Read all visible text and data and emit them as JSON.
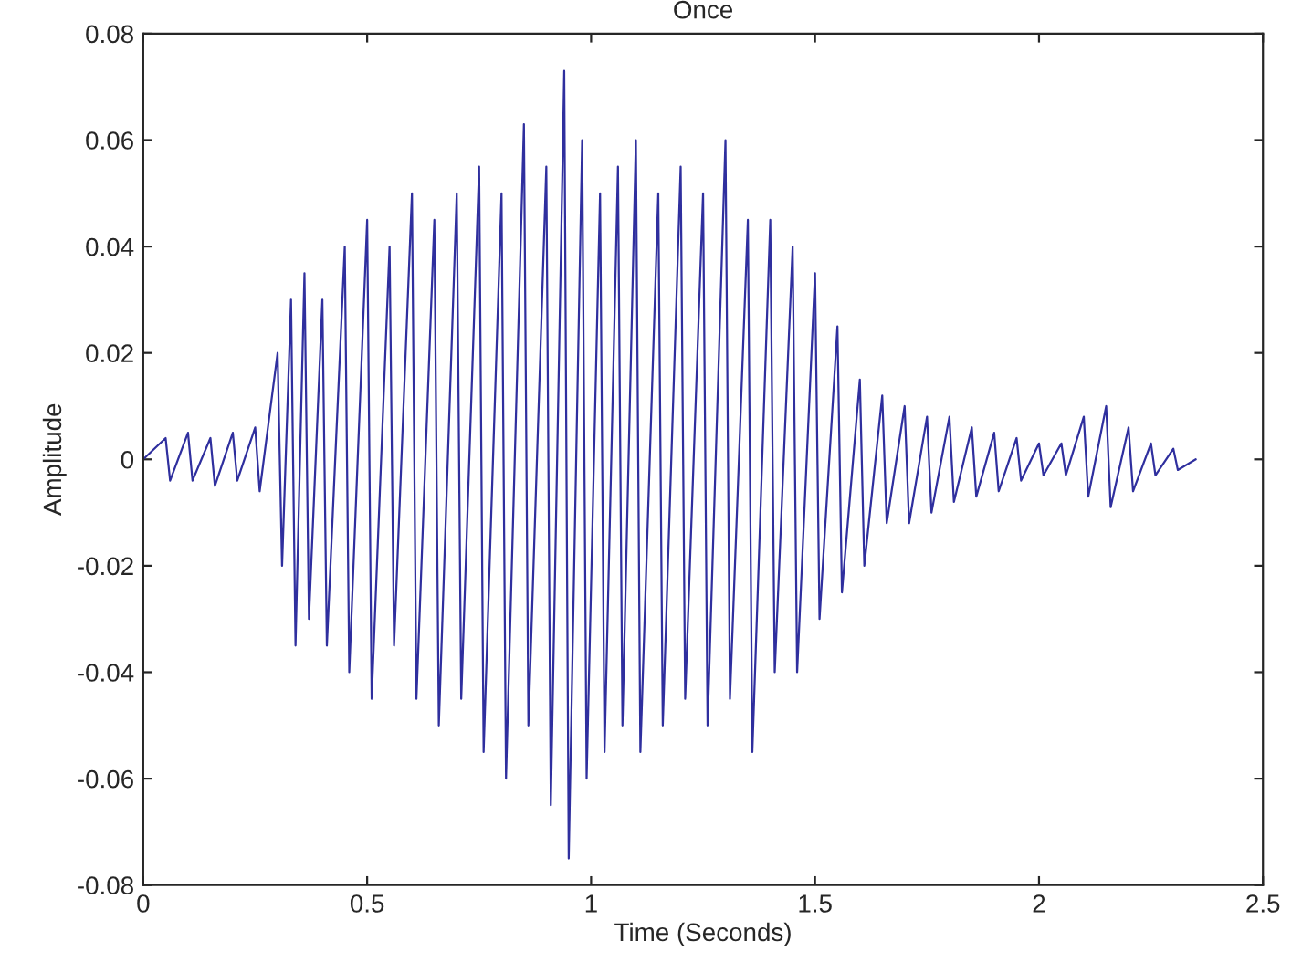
{
  "chart_data": {
    "type": "line",
    "title": "Once",
    "xlabel": "Time (Seconds)",
    "ylabel": "Amplitude",
    "xlim": [
      0,
      2.5
    ],
    "xticks": [
      0,
      0.5,
      1,
      1.5,
      2,
      2.5
    ],
    "ylim": [
      -0.08,
      0.08
    ],
    "yticks": [
      -0.08,
      -0.06,
      -0.04,
      -0.02,
      0,
      0.02,
      0.04,
      0.06,
      0.08
    ],
    "grid": false,
    "legend": false,
    "marker": "none",
    "line_style": "solid",
    "series": [
      {
        "color": "#2f2f9e",
        "x": [
          0,
          0.05,
          0.06,
          0.1,
          0.11,
          0.15,
          0.16,
          0.2,
          0.21,
          0.25,
          0.26,
          0.3,
          0.31,
          0.33,
          0.34,
          0.36,
          0.37,
          0.4,
          0.41,
          0.45,
          0.46,
          0.5,
          0.51,
          0.55,
          0.56,
          0.6,
          0.61,
          0.65,
          0.66,
          0.7,
          0.71,
          0.75,
          0.76,
          0.8,
          0.81,
          0.85,
          0.86,
          0.9,
          0.91,
          0.94,
          0.95,
          0.98,
          0.99,
          1.02,
          1.03,
          1.06,
          1.07,
          1.1,
          1.11,
          1.15,
          1.16,
          1.2,
          1.21,
          1.25,
          1.26,
          1.3,
          1.31,
          1.35,
          1.36,
          1.4,
          1.41,
          1.45,
          1.46,
          1.5,
          1.51,
          1.55,
          1.56,
          1.6,
          1.61,
          1.65,
          1.66,
          1.7,
          1.71,
          1.75,
          1.76,
          1.8,
          1.81,
          1.85,
          1.86,
          1.9,
          1.91,
          1.95,
          1.96,
          2.0,
          2.01,
          2.05,
          2.06,
          2.1,
          2.11,
          2.15,
          2.16,
          2.2,
          2.21,
          2.25,
          2.26,
          2.3,
          2.31,
          2.35
        ],
        "values": [
          0,
          0.004,
          -0.004,
          0.005,
          -0.004,
          0.004,
          -0.005,
          0.005,
          -0.004,
          0.006,
          -0.006,
          0.02,
          -0.02,
          0.03,
          -0.035,
          0.035,
          -0.03,
          0.03,
          -0.035,
          0.04,
          -0.04,
          0.045,
          -0.045,
          0.04,
          -0.035,
          0.05,
          -0.045,
          0.045,
          -0.05,
          0.05,
          -0.045,
          0.055,
          -0.055,
          0.05,
          -0.06,
          0.063,
          -0.05,
          0.055,
          -0.065,
          0.073,
          -0.075,
          0.06,
          -0.06,
          0.05,
          -0.055,
          0.055,
          -0.05,
          0.06,
          -0.055,
          0.05,
          -0.05,
          0.055,
          -0.045,
          0.05,
          -0.05,
          0.06,
          -0.045,
          0.045,
          -0.055,
          0.045,
          -0.04,
          0.04,
          -0.04,
          0.035,
          -0.03,
          0.025,
          -0.025,
          0.015,
          -0.02,
          0.012,
          -0.012,
          0.01,
          -0.012,
          0.008,
          -0.01,
          0.008,
          -0.008,
          0.006,
          -0.007,
          0.005,
          -0.006,
          0.004,
          -0.004,
          0.003,
          -0.003,
          0.003,
          -0.003,
          0.008,
          -0.007,
          0.01,
          -0.009,
          0.006,
          -0.006,
          0.003,
          -0.003,
          0.002,
          -0.002,
          0
        ]
      }
    ]
  }
}
